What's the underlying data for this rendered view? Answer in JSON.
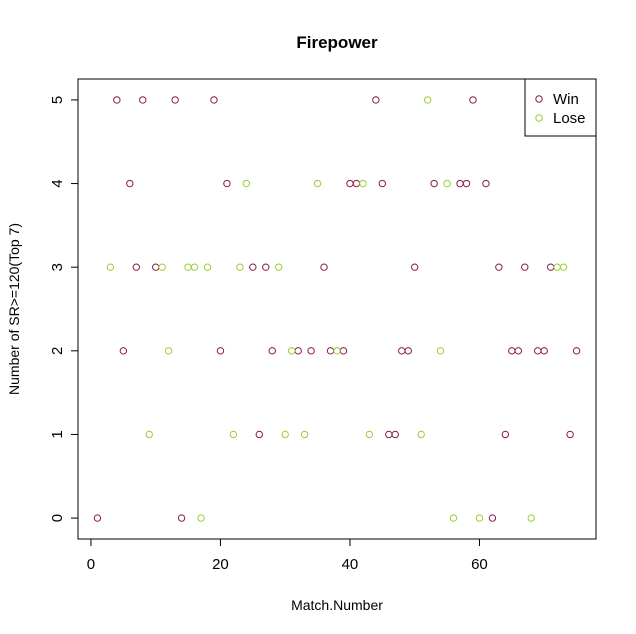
{
  "chart_data": {
    "type": "scatter",
    "title": "Firepower",
    "xlabel": "Match.Number",
    "ylabel": "Number of SR>=120(Top 7)",
    "xlim": [
      -2,
      78
    ],
    "ylim": [
      -0.25,
      5.25
    ],
    "x_ticks": [
      0,
      20,
      40,
      60
    ],
    "y_ticks": [
      0,
      1,
      2,
      3,
      4,
      5
    ],
    "x_tick_labels": [
      "0",
      "20",
      "40",
      "60"
    ],
    "y_tick_labels": [
      "0",
      "1",
      "2",
      "3",
      "4",
      "5"
    ],
    "grid": false,
    "legend_position": "top-right",
    "series": [
      {
        "name": "Win",
        "color": "#8B1A4A",
        "points": [
          [
            1,
            0
          ],
          [
            4,
            5
          ],
          [
            5,
            2
          ],
          [
            6,
            4
          ],
          [
            7,
            3
          ],
          [
            8,
            5
          ],
          [
            10,
            3
          ],
          [
            13,
            5
          ],
          [
            14,
            0
          ],
          [
            19,
            5
          ],
          [
            20,
            2
          ],
          [
            21,
            4
          ],
          [
            25,
            3
          ],
          [
            26,
            1
          ],
          [
            27,
            3
          ],
          [
            28,
            2
          ],
          [
            32,
            2
          ],
          [
            34,
            2
          ],
          [
            36,
            3
          ],
          [
            37,
            2
          ],
          [
            39,
            2
          ],
          [
            40,
            4
          ],
          [
            41,
            4
          ],
          [
            44,
            5
          ],
          [
            45,
            4
          ],
          [
            46,
            1
          ],
          [
            47,
            1
          ],
          [
            48,
            2
          ],
          [
            49,
            2
          ],
          [
            50,
            3
          ],
          [
            53,
            4
          ],
          [
            57,
            4
          ],
          [
            58,
            4
          ],
          [
            59,
            5
          ],
          [
            61,
            4
          ],
          [
            62,
            0
          ],
          [
            63,
            3
          ],
          [
            64,
            1
          ],
          [
            65,
            2
          ],
          [
            66,
            2
          ],
          [
            67,
            3
          ],
          [
            69,
            2
          ],
          [
            70,
            2
          ],
          [
            71,
            3
          ],
          [
            74,
            1
          ],
          [
            75,
            2
          ]
        ]
      },
      {
        "name": "Lose",
        "color": "#9ACD32",
        "points": [
          [
            3,
            3
          ],
          [
            9,
            1
          ],
          [
            11,
            3
          ],
          [
            12,
            2
          ],
          [
            15,
            3
          ],
          [
            16,
            3
          ],
          [
            17,
            0
          ],
          [
            18,
            3
          ],
          [
            22,
            1
          ],
          [
            23,
            3
          ],
          [
            24,
            4
          ],
          [
            29,
            3
          ],
          [
            30,
            1
          ],
          [
            31,
            2
          ],
          [
            33,
            1
          ],
          [
            35,
            4
          ],
          [
            38,
            2
          ],
          [
            42,
            4
          ],
          [
            43,
            1
          ],
          [
            51,
            1
          ],
          [
            52,
            5
          ],
          [
            54,
            2
          ],
          [
            55,
            4
          ],
          [
            56,
            0
          ],
          [
            60,
            0
          ],
          [
            68,
            0
          ],
          [
            72,
            3
          ],
          [
            73,
            3
          ]
        ]
      }
    ]
  }
}
